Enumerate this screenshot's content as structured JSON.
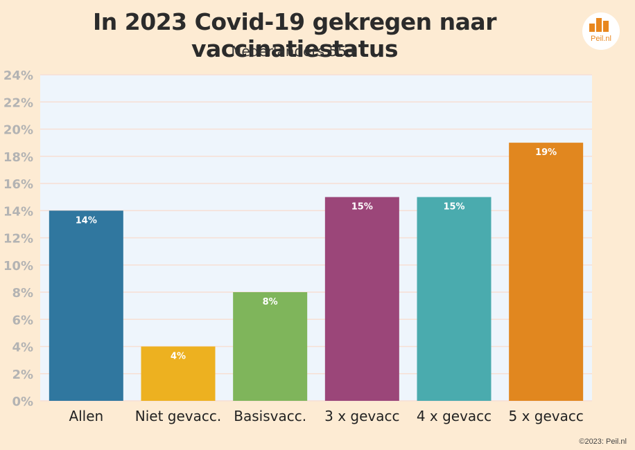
{
  "chart_data": {
    "type": "bar",
    "title": "In 2023 Covid-19 gekregen naar vaccinatiestatus",
    "subtitle": "Nederlanders 55+",
    "categories": [
      "Allen",
      "Niet gevacc.",
      "Basisvacc.",
      "3 x gevacc",
      "4 x gevacc",
      "5 x gevacc"
    ],
    "values": [
      14,
      4,
      8,
      15,
      15,
      19
    ],
    "value_labels": [
      "14%",
      "4%",
      "8%",
      "15%",
      "15%",
      "19%"
    ],
    "colors": [
      "#30779f",
      "#edb120",
      "#7fb55b",
      "#9b4679",
      "#4aabae",
      "#e1871f"
    ],
    "ylim": [
      0,
      24
    ],
    "yticks": [
      0,
      2,
      4,
      6,
      8,
      10,
      12,
      14,
      16,
      18,
      20,
      22,
      24
    ],
    "ytick_labels": [
      "0%",
      "2%",
      "4%",
      "6%",
      "8%",
      "10%",
      "12%",
      "14%",
      "16%",
      "18%",
      "20%",
      "22%",
      "24%"
    ],
    "grid": true,
    "xlabel": "",
    "ylabel": ""
  },
  "logo": {
    "text": "Peil.nl",
    "color": "#e8871e"
  },
  "footer": {
    "copyright": "©2023: Peil.nl"
  },
  "colors": {
    "background": "#fdebd3",
    "plot_background": "#eef5fc",
    "grid": "#f7dfd4",
    "axis_text": "#b3b3b3"
  }
}
